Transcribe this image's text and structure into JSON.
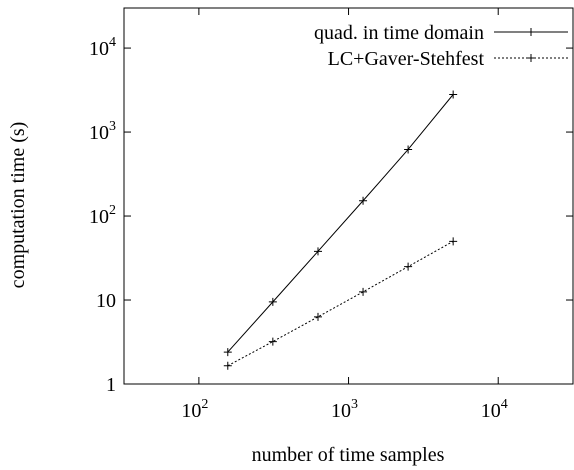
{
  "chart_data": {
    "type": "line",
    "title": "",
    "xlabel": "number of time samples",
    "ylabel": "computation time (s)",
    "xscale": "log",
    "yscale": "log",
    "xlim": [
      31.6,
      31600
    ],
    "ylim": [
      1,
      30000
    ],
    "x_ticks": [
      {
        "value": 100,
        "base": "10",
        "exp": "2"
      },
      {
        "value": 1000,
        "base": "10",
        "exp": "3"
      },
      {
        "value": 10000,
        "base": "10",
        "exp": "4"
      }
    ],
    "y_ticks": [
      {
        "value": 1,
        "base": "1",
        "exp": ""
      },
      {
        "value": 10,
        "base": "10",
        "exp": ""
      },
      {
        "value": 100,
        "base": "10",
        "exp": "2"
      },
      {
        "value": 1000,
        "base": "10",
        "exp": "3"
      },
      {
        "value": 10000,
        "base": "10",
        "exp": "4"
      }
    ],
    "grid": false,
    "legend_position": "top-right",
    "series": [
      {
        "name": "quad. in time domain",
        "line_style": "solid",
        "marker": "+",
        "x": [
          156,
          312,
          625,
          1250,
          2500,
          5000
        ],
        "y": [
          2.4,
          9.5,
          38,
          152,
          620,
          2800
        ]
      },
      {
        "name": "LC+Gaver-Stehfest",
        "line_style": "dotted",
        "marker": "+",
        "x": [
          156,
          312,
          625,
          1250,
          2500,
          5000
        ],
        "y": [
          1.65,
          3.2,
          6.3,
          12.5,
          25,
          50
        ]
      }
    ]
  }
}
